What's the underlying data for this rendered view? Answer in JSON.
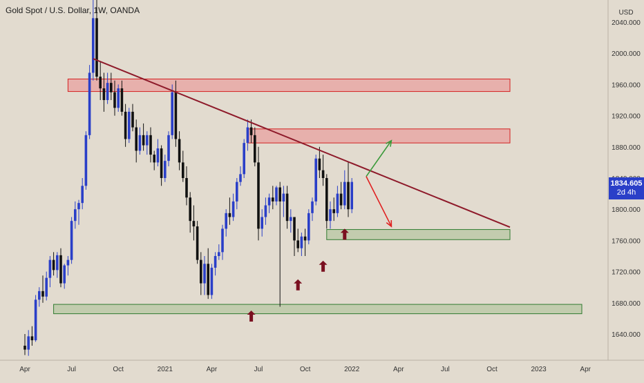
{
  "title": "Gold Spot / U.S. Dollar, 1W, OANDA",
  "currency": "USD",
  "last_price": "1834.605",
  "countdown": "2d 4h",
  "colors": {
    "background": "#e2dbcf",
    "up_candle": "#2a3fc8",
    "down_candle": "#111111",
    "resistance_zone": "#e8a2a0",
    "support_zone": "#bcc9a8",
    "trendline": "#8e1a2a",
    "arrow_up": "#3a9a3a",
    "arrow_down": "#e02020",
    "marker": "#7a1020"
  },
  "icons": [
    "up-arrow-marker-icon"
  ],
  "chart_data": {
    "type": "candlestick",
    "title": "Gold Spot / U.S. Dollar, 1W, OANDA",
    "xlabel": "",
    "ylabel": "USD",
    "ylim": [
      1610,
      2065
    ],
    "x_tick_labels": [
      "Apr",
      "Jul",
      "Oct",
      "2021",
      "Apr",
      "Jul",
      "Oct",
      "2022",
      "Apr",
      "Jul",
      "Oct",
      "2023",
      "Apr"
    ],
    "x_tick_weeks": [
      0,
      13,
      26,
      39,
      52,
      65,
      78,
      91,
      104,
      117,
      130,
      143,
      156
    ],
    "y_ticks": [
      1640,
      1680,
      1720,
      1760,
      1800,
      1840,
      1880,
      1920,
      1960,
      2000,
      2040
    ],
    "y_tick_labels": [
      "1640.000",
      "1680.000",
      "1720.000",
      "1760.000",
      "1800.000",
      "1840.000",
      "1880.000",
      "1920.000",
      "1960.000",
      "2000.000",
      "2040.000"
    ],
    "series": [
      {
        "type": "candlestick",
        "start_label": "Apr",
        "ohlc": [
          [
            1625,
            1640,
            1613,
            1620
          ],
          [
            1620,
            1645,
            1612,
            1637
          ],
          [
            1637,
            1650,
            1625,
            1632
          ],
          [
            1632,
            1690,
            1630,
            1684
          ],
          [
            1684,
            1700,
            1675,
            1695
          ],
          [
            1695,
            1715,
            1680,
            1688
          ],
          [
            1688,
            1720,
            1683,
            1712
          ],
          [
            1712,
            1740,
            1700,
            1735
          ],
          [
            1735,
            1745,
            1715,
            1722
          ],
          [
            1722,
            1745,
            1712,
            1741
          ],
          [
            1741,
            1750,
            1700,
            1705
          ],
          [
            1705,
            1730,
            1698,
            1728
          ],
          [
            1728,
            1740,
            1715,
            1735
          ],
          [
            1735,
            1790,
            1730,
            1785
          ],
          [
            1785,
            1810,
            1775,
            1800
          ],
          [
            1800,
            1812,
            1780,
            1808
          ],
          [
            1808,
            1840,
            1800,
            1830
          ],
          [
            1830,
            1900,
            1825,
            1895
          ],
          [
            1895,
            1985,
            1890,
            1975
          ],
          [
            1975,
            2070,
            1965,
            2045
          ],
          [
            2045,
            2072,
            1965,
            1970
          ],
          [
            1970,
            1990,
            1940,
            1955
          ],
          [
            1955,
            1975,
            1925,
            1940
          ],
          [
            1940,
            1975,
            1935,
            1962
          ],
          [
            1962,
            1975,
            1940,
            1950
          ],
          [
            1950,
            1965,
            1920,
            1930
          ],
          [
            1930,
            1960,
            1925,
            1955
          ],
          [
            1955,
            1965,
            1920,
            1925
          ],
          [
            1925,
            1935,
            1880,
            1890
          ],
          [
            1890,
            1930,
            1885,
            1925
          ],
          [
            1925,
            1935,
            1900,
            1905
          ],
          [
            1905,
            1915,
            1860,
            1875
          ],
          [
            1875,
            1905,
            1870,
            1895
          ],
          [
            1895,
            1910,
            1875,
            1882
          ],
          [
            1882,
            1900,
            1870,
            1895
          ],
          [
            1895,
            1905,
            1860,
            1870
          ],
          [
            1870,
            1875,
            1850,
            1860
          ],
          [
            1860,
            1890,
            1855,
            1878
          ],
          [
            1878,
            1882,
            1830,
            1840
          ],
          [
            1840,
            1870,
            1835,
            1862
          ],
          [
            1862,
            1900,
            1855,
            1895
          ],
          [
            1895,
            1960,
            1890,
            1950
          ],
          [
            1950,
            1965,
            1880,
            1890
          ],
          [
            1890,
            1900,
            1850,
            1860
          ],
          [
            1860,
            1875,
            1835,
            1840
          ],
          [
            1840,
            1855,
            1805,
            1815
          ],
          [
            1815,
            1822,
            1770,
            1785
          ],
          [
            1785,
            1805,
            1760,
            1778
          ],
          [
            1778,
            1785,
            1730,
            1735
          ],
          [
            1735,
            1745,
            1690,
            1705
          ],
          [
            1705,
            1740,
            1690,
            1730
          ],
          [
            1730,
            1750,
            1685,
            1690
          ],
          [
            1690,
            1730,
            1685,
            1725
          ],
          [
            1725,
            1745,
            1715,
            1740
          ],
          [
            1740,
            1755,
            1735,
            1745
          ],
          [
            1745,
            1780,
            1735,
            1775
          ],
          [
            1775,
            1800,
            1765,
            1795
          ],
          [
            1795,
            1815,
            1780,
            1790
          ],
          [
            1790,
            1820,
            1785,
            1810
          ],
          [
            1810,
            1840,
            1800,
            1835
          ],
          [
            1835,
            1855,
            1830,
            1845
          ],
          [
            1845,
            1890,
            1840,
            1885
          ],
          [
            1885,
            1915,
            1875,
            1905
          ],
          [
            1905,
            1915,
            1885,
            1895
          ],
          [
            1895,
            1905,
            1855,
            1860
          ],
          [
            1860,
            1880,
            1760,
            1775
          ],
          [
            1775,
            1800,
            1765,
            1790
          ],
          [
            1790,
            1815,
            1780,
            1805
          ],
          [
            1805,
            1820,
            1795,
            1815
          ],
          [
            1815,
            1830,
            1800,
            1810
          ],
          [
            1810,
            1830,
            1805,
            1828
          ],
          [
            1828,
            1835,
            1675,
            1810
          ],
          [
            1810,
            1830,
            1790,
            1820
          ],
          [
            1820,
            1830,
            1775,
            1785
          ],
          [
            1785,
            1800,
            1770,
            1790
          ],
          [
            1790,
            1790,
            1740,
            1760
          ],
          [
            1760,
            1775,
            1745,
            1750
          ],
          [
            1750,
            1770,
            1740,
            1765
          ],
          [
            1765,
            1775,
            1740,
            1760
          ],
          [
            1760,
            1800,
            1755,
            1795
          ],
          [
            1795,
            1815,
            1785,
            1810
          ],
          [
            1810,
            1870,
            1805,
            1865
          ],
          [
            1865,
            1880,
            1840,
            1850
          ],
          [
            1850,
            1870,
            1830,
            1840
          ],
          [
            1840,
            1845,
            1775,
            1785
          ],
          [
            1785,
            1810,
            1775,
            1800
          ],
          [
            1800,
            1815,
            1785,
            1795
          ],
          [
            1795,
            1830,
            1790,
            1820
          ],
          [
            1820,
            1835,
            1800,
            1805
          ],
          [
            1805,
            1850,
            1800,
            1835
          ],
          [
            1835,
            1860,
            1790,
            1800
          ],
          [
            1800,
            1840,
            1795,
            1835
          ]
        ]
      }
    ],
    "annotations": [
      {
        "type": "zone",
        "label": "resistance",
        "y_range": [
          1951,
          1967
        ],
        "x_range": [
          12,
          135
        ]
      },
      {
        "type": "zone",
        "label": "resistance",
        "y_range": [
          1885,
          1903
        ],
        "x_range": [
          62,
          135
        ]
      },
      {
        "type": "zone",
        "label": "support",
        "y_range": [
          1761,
          1774
        ],
        "x_range": [
          84,
          135
        ]
      },
      {
        "type": "zone",
        "label": "support",
        "y_range": [
          1666,
          1678
        ],
        "x_range": [
          8,
          155
        ]
      },
      {
        "type": "trendline",
        "from": [
          19,
          1993
        ],
        "to": [
          135,
          1777
        ]
      },
      {
        "type": "arrow",
        "direction": "up",
        "from": [
          95,
          1842
        ],
        "to": [
          102,
          1888
        ]
      },
      {
        "type": "arrow",
        "direction": "down",
        "from": [
          95,
          1842
        ],
        "to": [
          102,
          1778
        ]
      },
      {
        "type": "marker",
        "x": 63,
        "y": 1663
      },
      {
        "type": "marker",
        "x": 76,
        "y": 1703
      },
      {
        "type": "marker",
        "x": 83,
        "y": 1727
      },
      {
        "type": "marker",
        "x": 89,
        "y": 1768
      }
    ],
    "last_price": 1834.605,
    "grid": false,
    "legend": "none"
  }
}
